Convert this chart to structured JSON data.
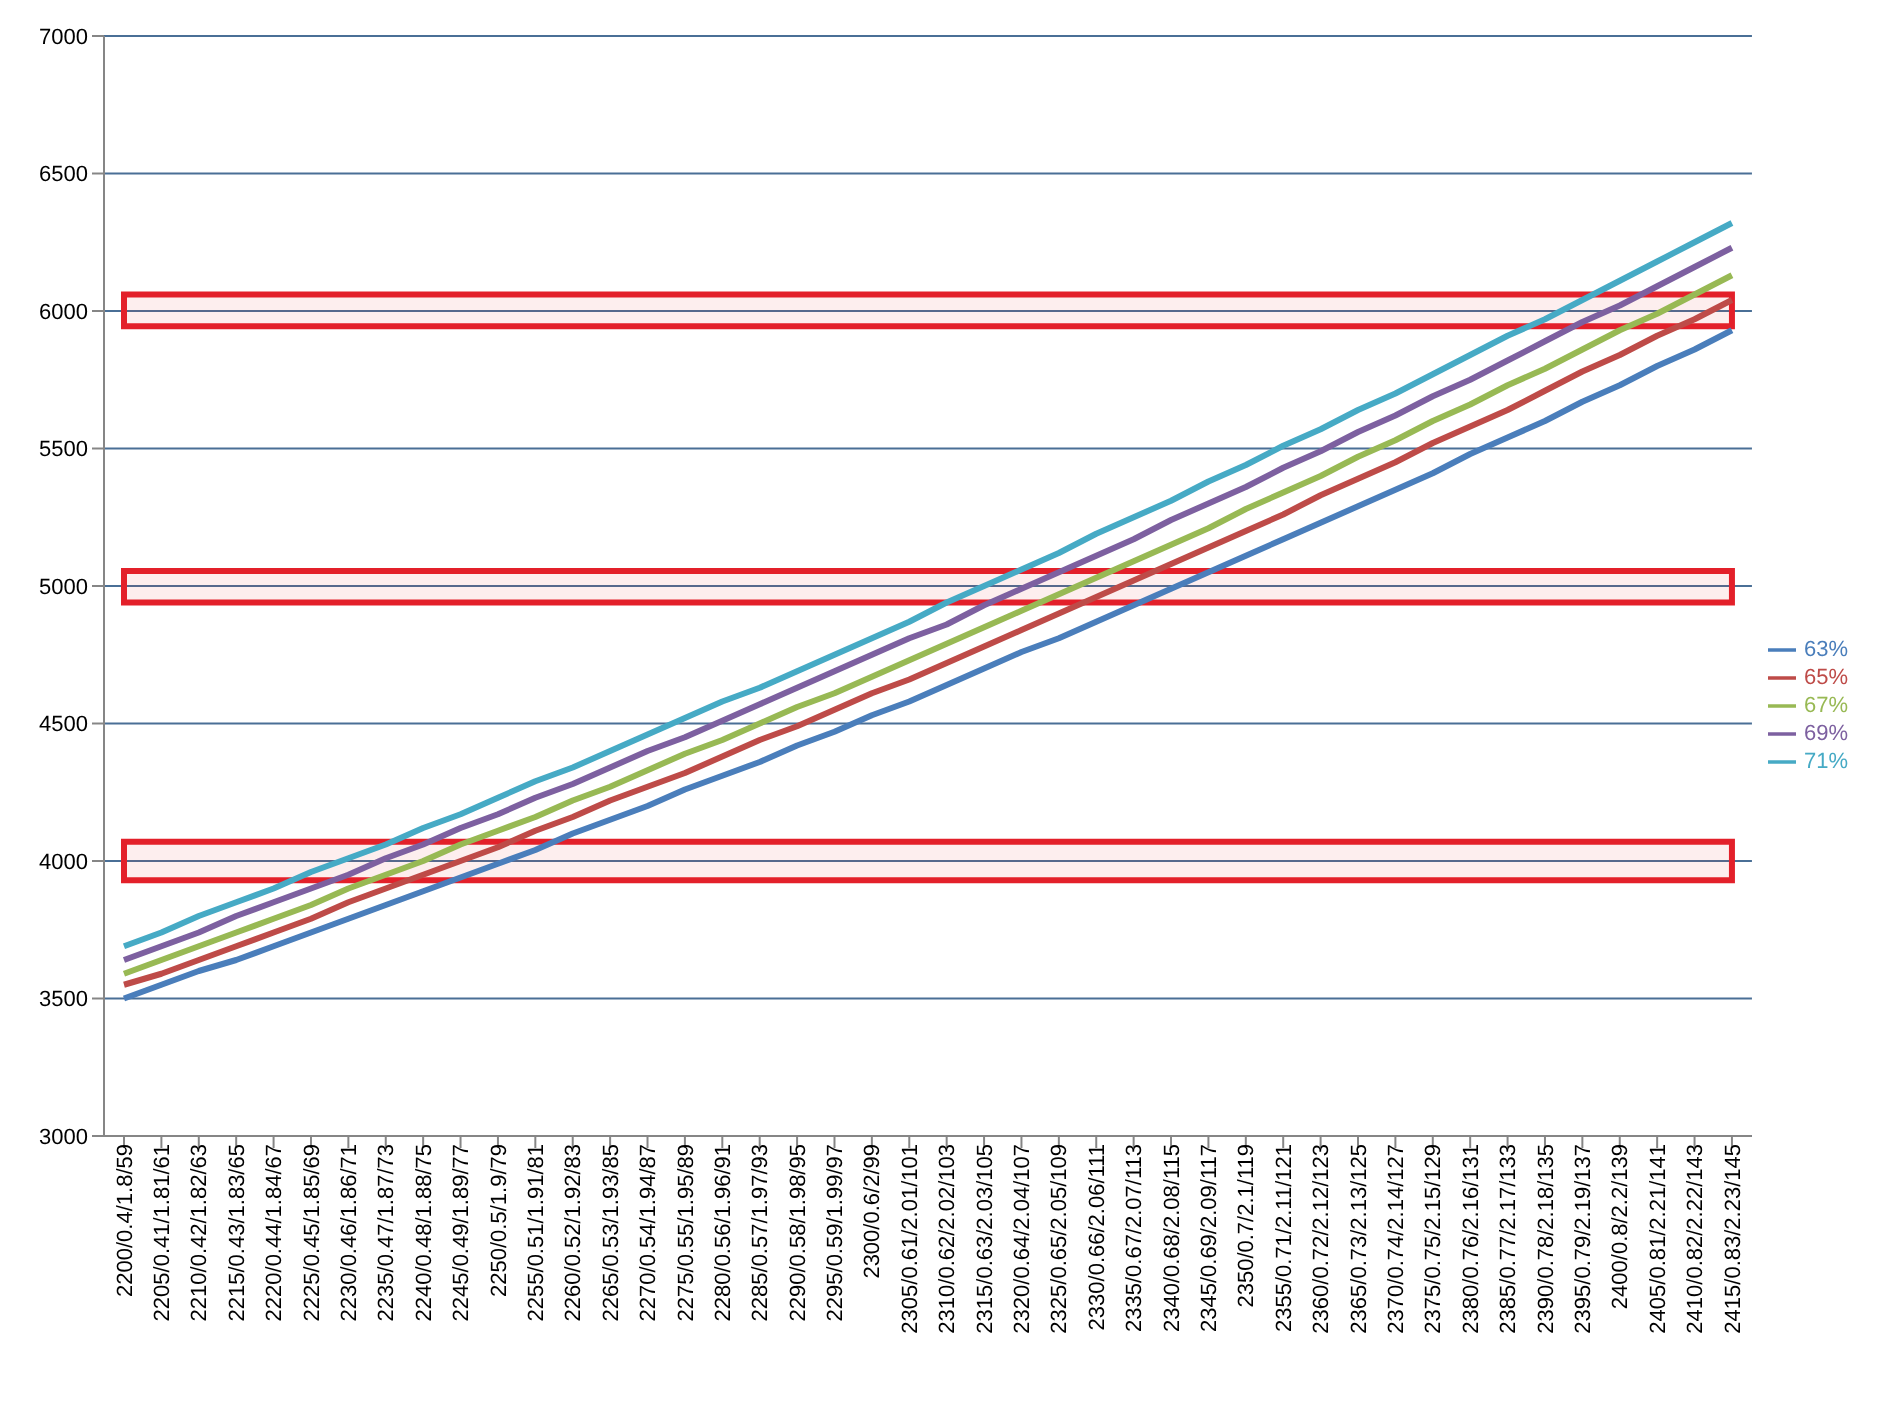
{
  "chart_data": {
    "type": "line",
    "categories": [
      "2200/0.4/1.8/59",
      "2205/0.41/1.81/61",
      "2210/0.42/1.82/63",
      "2215/0.43/1.83/65",
      "2220/0.44/1.84/67",
      "2225/0.45/1.85/69",
      "2230/0.46/1.86/71",
      "2235/0.47/1.87/73",
      "2240/0.48/1.88/75",
      "2245/0.49/1.89/77",
      "2250/0.5/1.9/79",
      "2255/0.51/1.91/81",
      "2260/0.52/1.92/83",
      "2265/0.53/1.93/85",
      "2270/0.54/1.94/87",
      "2275/0.55/1.95/89",
      "2280/0.56/1.96/91",
      "2285/0.57/1.97/93",
      "2290/0.58/1.98/95",
      "2295/0.59/1.99/97",
      "2300/0.6/2/99",
      "2305/0.61/2.01/101",
      "2310/0.62/2.02/103",
      "2315/0.63/2.03/105",
      "2320/0.64/2.04/107",
      "2325/0.65/2.05/109",
      "2330/0.66/2.06/111",
      "2335/0.67/2.07/113",
      "2340/0.68/2.08/115",
      "2345/0.69/2.09/117",
      "2350/0.7/2.1/119",
      "2355/0.71/2.11/121",
      "2360/0.72/2.12/123",
      "2365/0.73/2.13/125",
      "2370/0.74/2.14/127",
      "2375/0.75/2.15/129",
      "2380/0.76/2.16/131",
      "2385/0.77/2.17/133",
      "2390/0.78/2.18/135",
      "2395/0.79/2.19/137",
      "2400/0.8/2.2/139",
      "2405/0.81/2.21/141",
      "2410/0.82/2.22/143",
      "2415/0.83/2.23/145"
    ],
    "series": [
      {
        "name": "63%",
        "color": "#4a7ebb",
        "values": [
          3500,
          3550,
          3600,
          3640,
          3690,
          3740,
          3790,
          3840,
          3890,
          3940,
          3990,
          4040,
          4100,
          4150,
          4200,
          4260,
          4310,
          4360,
          4420,
          4470,
          4530,
          4580,
          4640,
          4700,
          4760,
          4810,
          4870,
          4930,
          4990,
          5050,
          5110,
          5170,
          5230,
          5290,
          5350,
          5410,
          5480,
          5540,
          5600,
          5670,
          5730,
          5800,
          5860,
          5930
        ]
      },
      {
        "name": "65%",
        "color": "#be4b48",
        "values": [
          3550,
          3590,
          3640,
          3690,
          3740,
          3790,
          3850,
          3900,
          3950,
          4000,
          4050,
          4110,
          4160,
          4220,
          4270,
          4320,
          4380,
          4440,
          4490,
          4550,
          4610,
          4660,
          4720,
          4780,
          4840,
          4900,
          4960,
          5020,
          5080,
          5140,
          5200,
          5260,
          5330,
          5390,
          5450,
          5520,
          5580,
          5640,
          5710,
          5780,
          5840,
          5910,
          5970,
          6040
        ]
      },
      {
        "name": "67%",
        "color": "#98b954",
        "values": [
          3590,
          3640,
          3690,
          3740,
          3790,
          3840,
          3900,
          3950,
          4000,
          4060,
          4110,
          4160,
          4220,
          4270,
          4330,
          4390,
          4440,
          4500,
          4560,
          4610,
          4670,
          4730,
          4790,
          4850,
          4910,
          4970,
          5030,
          5090,
          5150,
          5210,
          5280,
          5340,
          5400,
          5470,
          5530,
          5600,
          5660,
          5730,
          5790,
          5860,
          5930,
          5990,
          6060,
          6130
        ]
      },
      {
        "name": "69%",
        "color": "#7d60a0",
        "values": [
          3640,
          3690,
          3740,
          3800,
          3850,
          3900,
          3950,
          4010,
          4060,
          4120,
          4170,
          4230,
          4280,
          4340,
          4400,
          4450,
          4510,
          4570,
          4630,
          4690,
          4750,
          4810,
          4860,
          4930,
          4990,
          5050,
          5110,
          5170,
          5240,
          5300,
          5360,
          5430,
          5490,
          5560,
          5620,
          5690,
          5750,
          5820,
          5890,
          5960,
          6020,
          6090,
          6160,
          6230
        ]
      },
      {
        "name": "71%",
        "color": "#46aac5",
        "values": [
          3690,
          3740,
          3800,
          3850,
          3900,
          3960,
          4010,
          4060,
          4120,
          4170,
          4230,
          4290,
          4340,
          4400,
          4460,
          4520,
          4580,
          4630,
          4690,
          4750,
          4810,
          4870,
          4940,
          5000,
          5060,
          5120,
          5190,
          5250,
          5310,
          5380,
          5440,
          5510,
          5570,
          5640,
          5700,
          5770,
          5840,
          5910,
          5970,
          6040,
          6110,
          6180,
          6250,
          6320
        ]
      }
    ],
    "ylim": [
      3000,
      7000
    ],
    "yticks": [
      3000,
      3500,
      4000,
      4500,
      5000,
      5500,
      6000,
      6500,
      7000
    ],
    "grid": "y",
    "legend": "right",
    "marker": "none",
    "line_style": "solid",
    "bands": [
      {
        "axis": "y",
        "from": 3930,
        "to": 4070,
        "color": "#e3202a"
      },
      {
        "axis": "y",
        "from": 4940,
        "to": 5055,
        "color": "#e3202a"
      },
      {
        "axis": "y",
        "from": 5945,
        "to": 6060,
        "color": "#e3202a"
      }
    ]
  }
}
